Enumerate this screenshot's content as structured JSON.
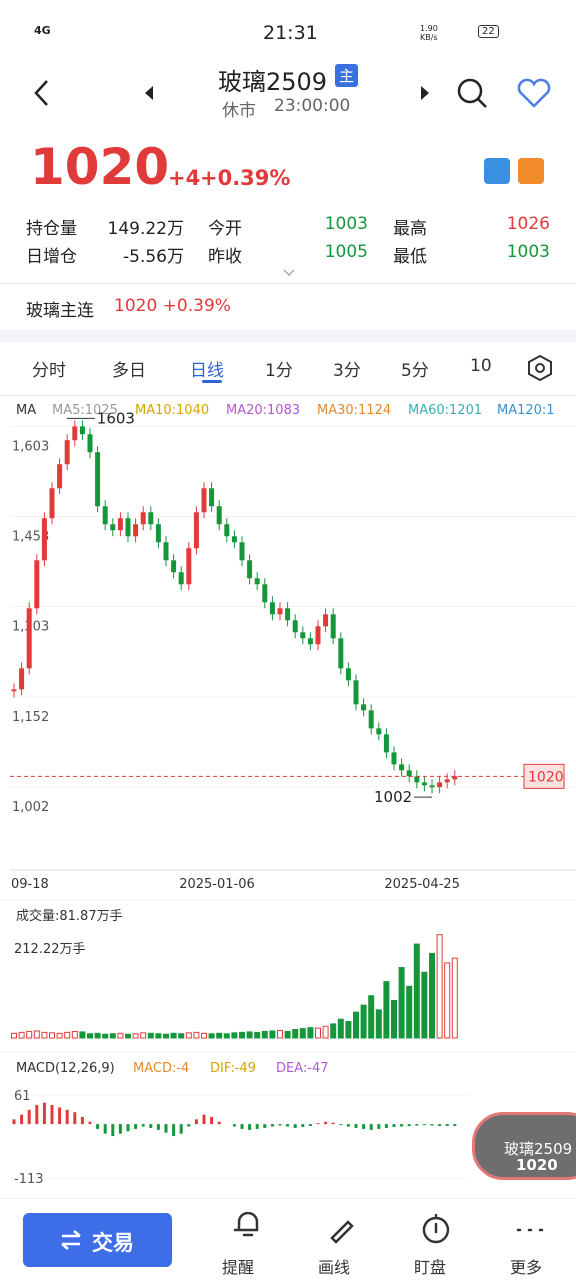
{
  "status": {
    "network": "4G",
    "time": "21:31",
    "speed": "1.90 KB/s",
    "battery": "22"
  },
  "header": {
    "title": "玻璃2509",
    "badge": "主",
    "state": "休市",
    "time": "23:00:00"
  },
  "quote": {
    "price": "1020",
    "change": "+4",
    "pct": "+0.39%"
  },
  "stats": [
    [
      "持仓量",
      "149.22万",
      "今开",
      "1003",
      "最高",
      "1026"
    ],
    [
      "日增仓",
      "-5.56万",
      "昨收",
      "1005",
      "最低",
      "1003"
    ]
  ],
  "main_contract": {
    "name": "玻璃主连",
    "value": "1020 +0.39%"
  },
  "tabs": [
    "分时",
    "多日",
    "日线",
    "1分",
    "3分",
    "5分",
    "10"
  ],
  "ma_legend": [
    "MA",
    "MA5:1025",
    "MA10:1040",
    "MA20:1083",
    "MA30:1124",
    "MA60:1201",
    "MA120:1"
  ],
  "chart_data": [
    {
      "type": "candlestick",
      "colors": {
        "up": "#e03a3a",
        "down": "#16963a"
      },
      "categories": [
        "09-18",
        null,
        null,
        null,
        null,
        null,
        null,
        null,
        null,
        null,
        null,
        null,
        null,
        null,
        null,
        null,
        null,
        null,
        null,
        null,
        null,
        null,
        null,
        null,
        null,
        null,
        null,
        "2025-01-06",
        null,
        null,
        null,
        null,
        null,
        null,
        null,
        null,
        null,
        null,
        null,
        null,
        null,
        null,
        null,
        null,
        null,
        null,
        null,
        null,
        null,
        null,
        null,
        null,
        null,
        null,
        "2025-04-25",
        null,
        null,
        null,
        null
      ],
      "values": [
        1165,
        1200,
        1300,
        1380,
        1450,
        1500,
        1540,
        1580,
        1603,
        1590,
        1560,
        1470,
        1440,
        1430,
        1450,
        1420,
        1440,
        1460,
        1440,
        1410,
        1380,
        1360,
        1340,
        1400,
        1460,
        1500,
        1470,
        1440,
        1420,
        1410,
        1380,
        1350,
        1340,
        1310,
        1290,
        1300,
        1280,
        1260,
        1250,
        1240,
        1270,
        1290,
        1250,
        1200,
        1180,
        1140,
        1130,
        1100,
        1090,
        1060,
        1040,
        1030,
        1020,
        1010,
        1005,
        1002,
        1010,
        1015,
        1020
      ],
      "ylim": [
        864,
        1622
      ],
      "yticks": [
        {
          "value": 1603,
          "label": "1,603"
        },
        {
          "value": 1453,
          "label": "1,453"
        },
        {
          "value": 1303,
          "label": "1,303"
        },
        {
          "value": 1152,
          "label": "1,152"
        },
        {
          "value": 1002,
          "label": "1,002"
        }
      ],
      "annotations": {
        "max": "1603",
        "min": "1002",
        "last": "1020"
      }
    },
    {
      "type": "volume",
      "title": "成交量:81.87万手",
      "scale_label": "212.22万手",
      "values": [
        10,
        12,
        14,
        15,
        12,
        11,
        10,
        12,
        14,
        13,
        9,
        10,
        8,
        9,
        10,
        8,
        9,
        11,
        10,
        9,
        8,
        10,
        9,
        11,
        12,
        10,
        9,
        10,
        9,
        11,
        12,
        13,
        12,
        14,
        15,
        16,
        14,
        18,
        20,
        22,
        21,
        25,
        30,
        40,
        35,
        55,
        70,
        90,
        60,
        120,
        80,
        150,
        110,
        200,
        140,
        180,
        220,
        160,
        170
      ],
      "ylim": [
        0,
        230
      ]
    },
    {
      "type": "macd",
      "legend": [
        "MACD(12,26,9)",
        "MACD:-4",
        "DIF:-49",
        "DEA:-47"
      ],
      "values": [
        10,
        20,
        30,
        40,
        45,
        40,
        35,
        30,
        25,
        15,
        5,
        -10,
        -20,
        -25,
        -20,
        -15,
        -10,
        -5,
        -8,
        -12,
        -18,
        -25,
        -20,
        -5,
        10,
        20,
        15,
        5,
        0,
        -5,
        -10,
        -12,
        -10,
        -8,
        -5,
        -3,
        -5,
        -8,
        -6,
        -4,
        2,
        5,
        3,
        -2,
        -5,
        -8,
        -10,
        -12,
        -10,
        -8,
        -6,
        -5,
        -4,
        -3,
        -2,
        -3,
        -4,
        -4,
        -4
      ],
      "ylim": [
        -138,
        82
      ],
      "yticks": [
        61,
        -113
      ]
    }
  ],
  "nav": [
    "交易",
    "提醒",
    "画线",
    "盯盘",
    "更多"
  ],
  "widget": {
    "name": "玻璃2509",
    "price": "1020"
  }
}
